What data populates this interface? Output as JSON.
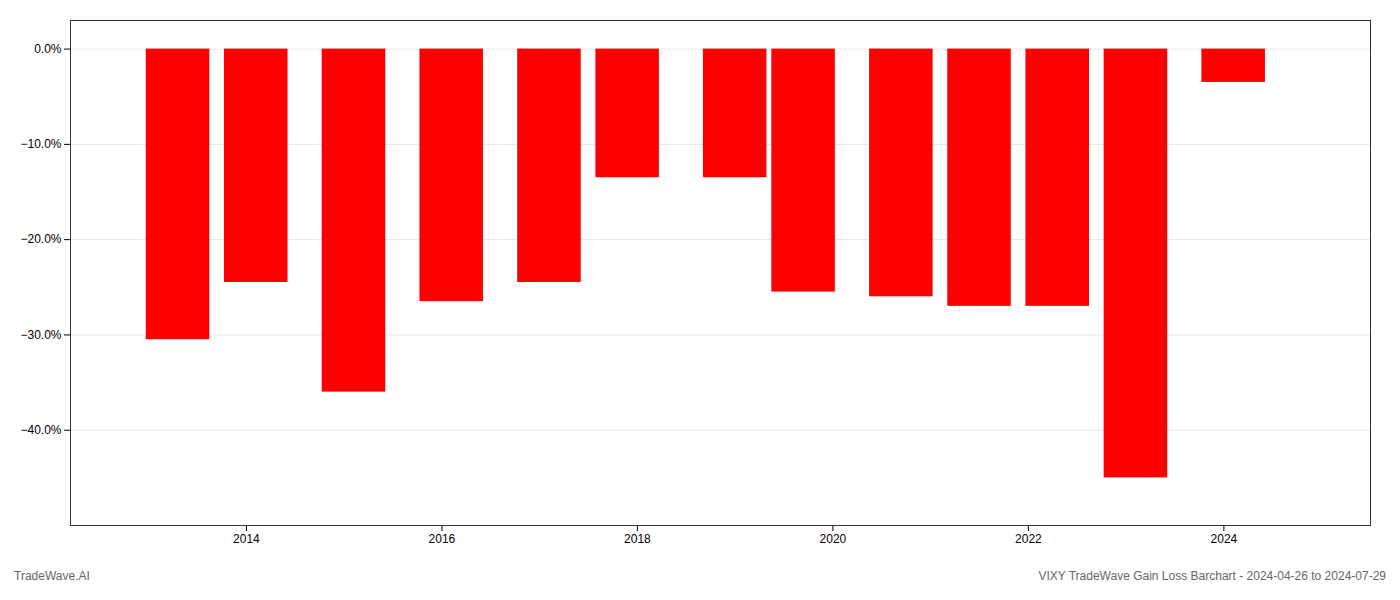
{
  "chart_data": {
    "type": "bar",
    "x": [
      2013.3,
      2014.1,
      2015.1,
      2016.1,
      2017.1,
      2017.9,
      2019.0,
      2019.7,
      2020.7,
      2021.5,
      2022.3,
      2023.1,
      2024.1
    ],
    "values": [
      -30.5,
      -24.5,
      -36.0,
      -26.5,
      -24.5,
      -13.5,
      -13.5,
      -25.5,
      -26.0,
      -27.0,
      -27.0,
      -45.0,
      -3.5
    ],
    "color": "#ff0000",
    "xlim": [
      2012.2,
      2025.5
    ],
    "xticks": [
      2014,
      2016,
      2018,
      2020,
      2022,
      2024
    ],
    "ylim": [
      -50,
      3
    ],
    "yticks": [
      {
        "value": 0.0,
        "label": "0.0%"
      },
      {
        "value": -10.0,
        "label": "−10.0%"
      },
      {
        "value": -20.0,
        "label": "−20.0%"
      },
      {
        "value": -30.0,
        "label": "−30.0%"
      },
      {
        "value": -40.0,
        "label": "−40.0%"
      }
    ],
    "grid": true,
    "annotations": [
      "TradeWave.AI",
      "VIXY TradeWave Gain Loss Barchart - 2024-04-26 to 2024-07-29"
    ]
  }
}
